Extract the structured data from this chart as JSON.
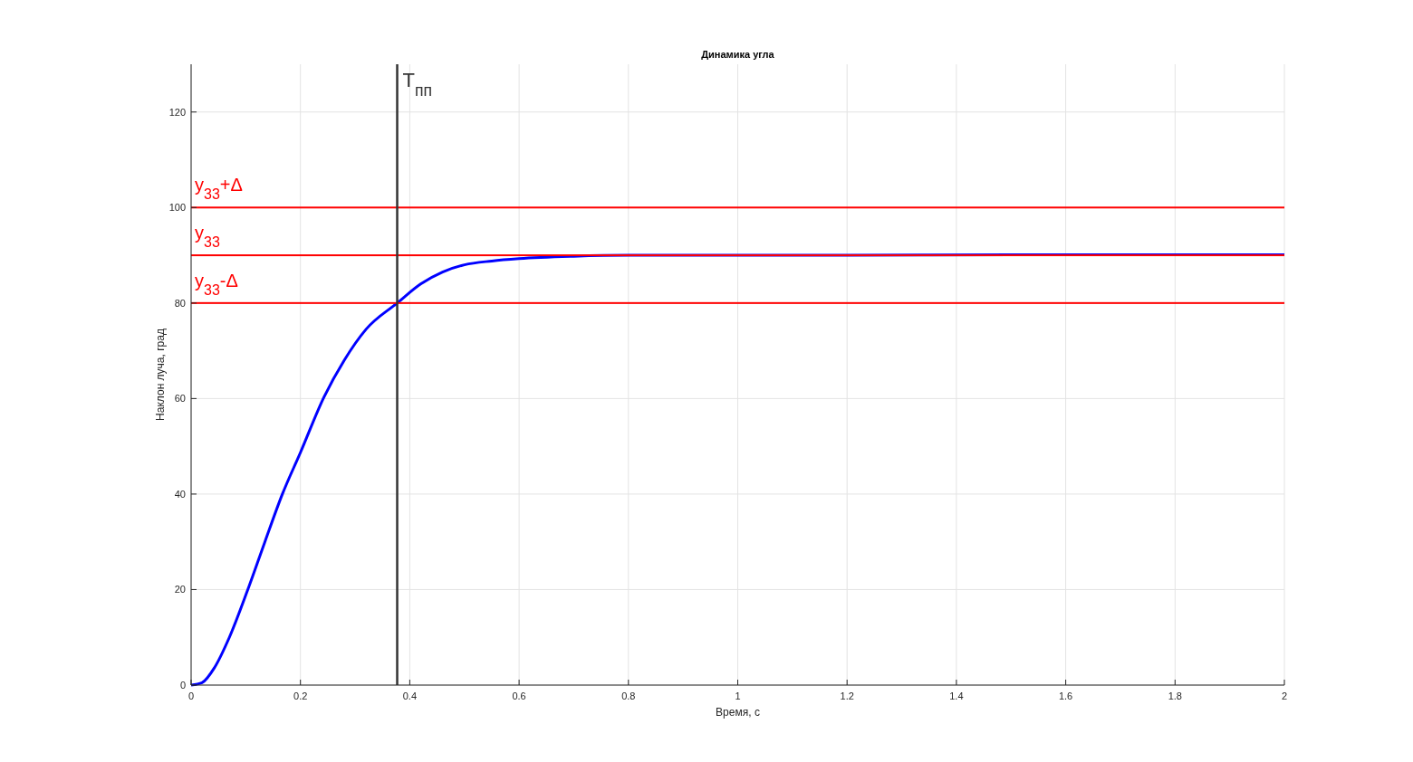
{
  "chart_data": {
    "type": "line",
    "title": "Динамика угла",
    "xlabel": "Время, с",
    "ylabel": "Наклон луча, град",
    "xlim": [
      0,
      2
    ],
    "xticks": [
      0,
      0.2,
      0.4,
      0.6,
      0.8,
      1,
      1.2,
      1.4,
      1.6,
      1.8,
      2
    ],
    "ylim": [
      0,
      130
    ],
    "yticks": [
      0,
      20,
      40,
      60,
      80,
      100,
      120
    ],
    "grid": true,
    "series": [
      {
        "color": "#0000ff",
        "x": [
          0,
          0.02,
          0.043,
          0.07,
          0.106,
          0.135,
          0.167,
          0.2,
          0.243,
          0.28,
          0.32,
          0.377,
          0.42,
          0.46,
          0.5,
          0.55,
          0.6,
          0.7,
          0.8,
          0.9,
          1,
          1.2,
          1.5,
          2
        ],
        "values": [
          0,
          0.5,
          3.7,
          10,
          20.7,
          30,
          40,
          48.7,
          60.3,
          68,
          74.5,
          80,
          84,
          86.5,
          88,
          88.8,
          89.3,
          89.8,
          90,
          90,
          90,
          90,
          90.1,
          90.1
        ]
      }
    ],
    "ref_lines": [
      {
        "axis": "y",
        "value": 100,
        "label": "y$_{33}$+Δ",
        "color": "#ff0000"
      },
      {
        "axis": "y",
        "value": 90,
        "label": "y$_{33}$",
        "color": "#ff0000"
      },
      {
        "axis": "y",
        "value": 80,
        "label": "y$_{33}$-Δ",
        "color": "#ff0000"
      },
      {
        "axis": "x",
        "value": 0.377,
        "label": "T$_{пп}$",
        "color": "#333333"
      }
    ]
  }
}
